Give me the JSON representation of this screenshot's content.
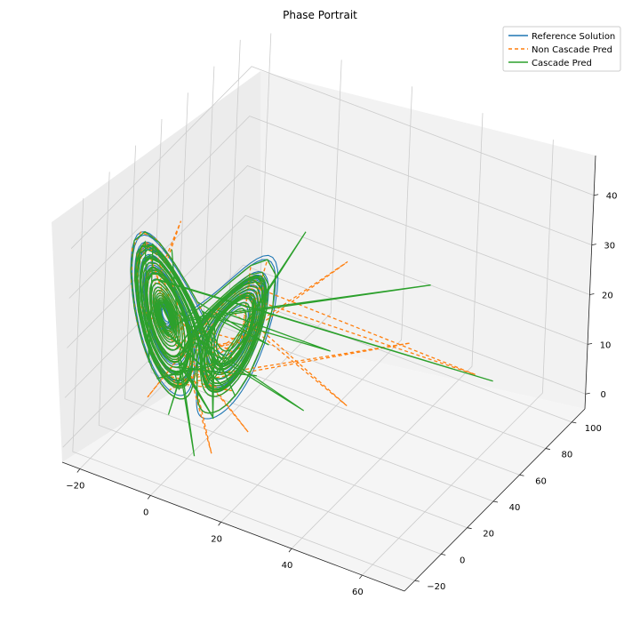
{
  "chart_data": {
    "type": "line",
    "projection": "3d",
    "title": "Phase Portrait",
    "xlabel": "",
    "ylabel": "",
    "zlabel": "",
    "grid": true,
    "legend_position": "top-right",
    "x_ticks": [
      -20,
      0,
      20,
      40,
      60
    ],
    "y_ticks": [
      -20,
      0,
      20,
      40,
      60,
      80,
      100
    ],
    "z_ticks": [
      0,
      10,
      20,
      30,
      40
    ],
    "xlim": [
      -25,
      72
    ],
    "ylim": [
      -28,
      110
    ],
    "zlim": [
      -3,
      48
    ],
    "colors": {
      "reference": "#1f77b4",
      "non_cascade": "#ff7f0e",
      "cascade": "#2ca02c",
      "pane_fill": "#f2f2f2",
      "grid": "#cccccc"
    },
    "series": [
      {
        "name": "Reference Solution",
        "style": "solid"
      },
      {
        "name": "Non Cascade Pred",
        "style": "dashed",
        "points": [
          [
            -12,
            -2,
            35
          ],
          [
            -8,
            10,
            40
          ],
          [
            25,
            50,
            30
          ],
          [
            40,
            60,
            15
          ],
          [
            55,
            70,
            10
          ],
          [
            10,
            10,
            18
          ],
          [
            15,
            5,
            5
          ],
          [
            2,
            0,
            22
          ],
          [
            -5,
            -2,
            10
          ],
          [
            5,
            5,
            -2
          ],
          [
            -8,
            -5,
            30
          ],
          [
            10,
            5,
            12
          ],
          [
            -10,
            -5,
            8
          ],
          [
            12,
            15,
            20
          ],
          [
            0,
            -5,
            25
          ],
          [
            30,
            40,
            5
          ],
          [
            5,
            2,
            15
          ],
          [
            -3,
            0,
            18
          ]
        ]
      },
      {
        "name": "Cascade Pred",
        "style": "solid",
        "points": [
          [
            -2,
            -3,
            20
          ],
          [
            -6,
            -2,
            38
          ],
          [
            5,
            -5,
            12
          ],
          [
            8,
            -3,
            8
          ],
          [
            20,
            30,
            40
          ],
          [
            15,
            10,
            15
          ],
          [
            45,
            60,
            28
          ],
          [
            8,
            5,
            12
          ],
          [
            60,
            70,
            10
          ],
          [
            -10,
            -5,
            15
          ],
          [
            30,
            25,
            20
          ],
          [
            5,
            5,
            5
          ],
          [
            12,
            -5,
            18
          ],
          [
            10,
            8,
            10
          ],
          [
            25,
            20,
            8
          ],
          [
            -5,
            -2,
            5
          ],
          [
            0,
            0,
            28
          ],
          [
            18,
            10,
            22
          ],
          [
            -8,
            -4,
            12
          ],
          [
            2,
            0,
            -2
          ],
          [
            14,
            12,
            25
          ],
          [
            6,
            5,
            18
          ],
          [
            -3,
            0,
            10
          ]
        ]
      }
    ]
  }
}
